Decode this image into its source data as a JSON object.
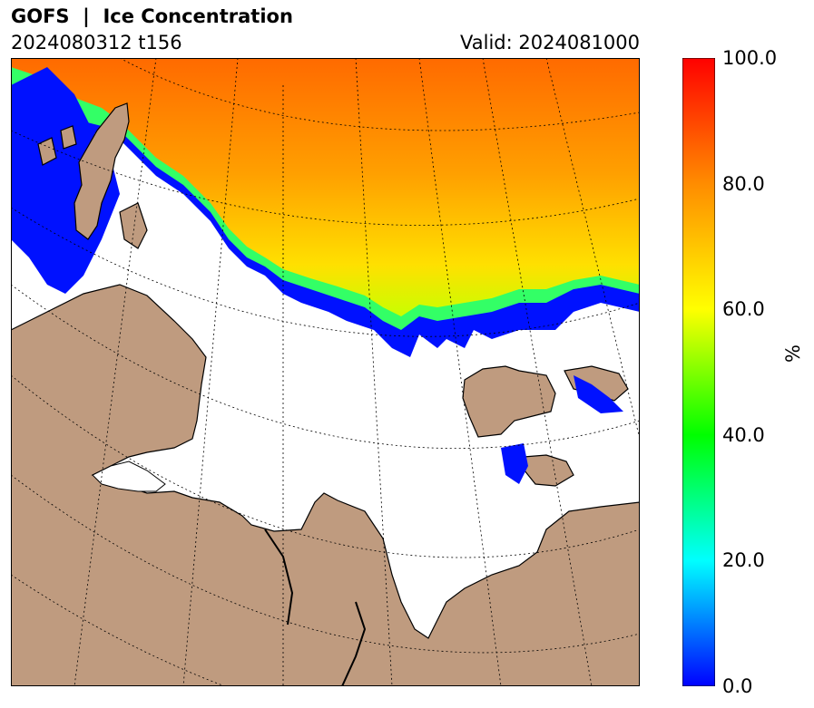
{
  "header": {
    "title": "GOFS  |  Ice Concentration",
    "run": "2024080312 t156",
    "valid": "Valid: 2024081000"
  },
  "colorbar": {
    "unit": "%",
    "ticks": [
      "100.0",
      "80.0",
      "60.0",
      "40.0",
      "20.0",
      "0.0"
    ],
    "stops": [
      "#ff0000",
      "#ff8c00",
      "#ffff00",
      "#00ff00",
      "#00ffff",
      "#0000ff"
    ]
  },
  "colors": {
    "land": "#bf9b7f",
    "ocean": "#ffffff",
    "ice_high": "#ff8c00",
    "ice_mid": "#ffff00",
    "ice_low": "#0000ff"
  }
}
